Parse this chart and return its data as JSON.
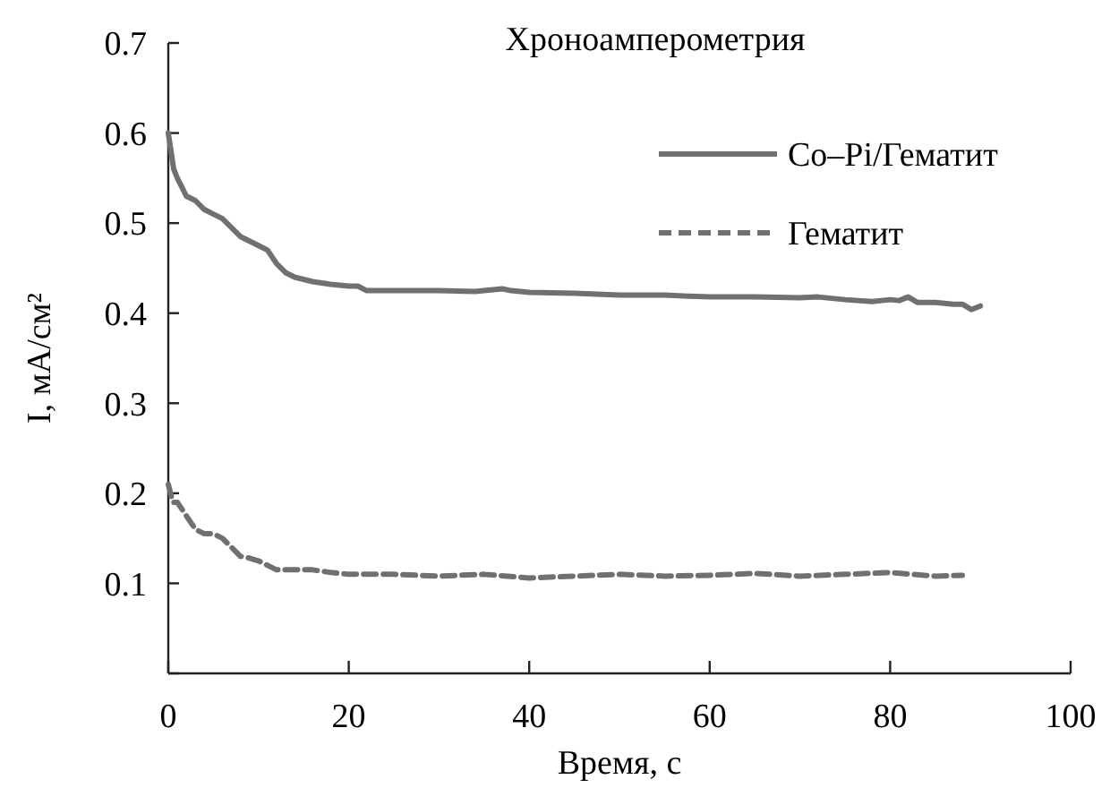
{
  "chart_data": {
    "type": "line",
    "title": "Хроноамперометрия",
    "xlabel": "Время, с",
    "ylabel": "I, мА/см²",
    "xlim": [
      0,
      100
    ],
    "ylim": [
      0,
      0.7
    ],
    "xticks": [
      0,
      20,
      40,
      60,
      80,
      100
    ],
    "yticks": [
      {
        "value": 0,
        "label": null
      },
      0.1,
      0.2,
      0.3,
      0.4,
      0.5,
      0.6,
      0.7
    ],
    "grid": false,
    "legend": "top right",
    "marker": "none",
    "series": [
      {
        "name": "Co–Pi/Гематит",
        "color": "#707070",
        "line_style": "solid",
        "x": [
          0,
          0.3,
          0.6,
          1,
          1.5,
          2,
          3,
          4,
          5,
          6,
          7,
          8,
          9,
          10,
          11,
          12,
          13,
          14,
          16,
          18,
          20,
          21,
          22,
          24,
          26,
          30,
          34,
          37,
          38,
          40,
          45,
          50,
          55,
          60,
          65,
          70,
          72,
          75,
          78,
          80,
          81,
          82,
          83,
          85,
          87,
          88,
          89,
          90
        ],
        "values": [
          0.6,
          0.58,
          0.56,
          0.55,
          0.54,
          0.53,
          0.525,
          0.515,
          0.51,
          0.505,
          0.495,
          0.485,
          0.48,
          0.475,
          0.47,
          0.455,
          0.445,
          0.44,
          0.435,
          0.432,
          0.43,
          0.43,
          0.425,
          0.425,
          0.425,
          0.425,
          0.424,
          0.427,
          0.425,
          0.423,
          0.422,
          0.42,
          0.42,
          0.418,
          0.418,
          0.417,
          0.418,
          0.415,
          0.413,
          0.415,
          0.414,
          0.418,
          0.412,
          0.412,
          0.41,
          0.41,
          0.404,
          0.408
        ]
      },
      {
        "name": "Гематит",
        "color": "#707070",
        "line_style": "dashed",
        "x": [
          0,
          0.5,
          1,
          2,
          3,
          4,
          5,
          6,
          7,
          8,
          9,
          10,
          11,
          12,
          14,
          16,
          18,
          20,
          25,
          30,
          35,
          40,
          45,
          50,
          55,
          60,
          65,
          70,
          75,
          80,
          85,
          88
        ],
        "values": [
          0.21,
          0.19,
          0.19,
          0.175,
          0.16,
          0.155,
          0.155,
          0.15,
          0.14,
          0.13,
          0.128,
          0.125,
          0.12,
          0.115,
          0.115,
          0.115,
          0.112,
          0.11,
          0.11,
          0.108,
          0.11,
          0.106,
          0.108,
          0.11,
          0.108,
          0.109,
          0.111,
          0.108,
          0.11,
          0.112,
          0.108,
          0.109
        ]
      }
    ]
  }
}
